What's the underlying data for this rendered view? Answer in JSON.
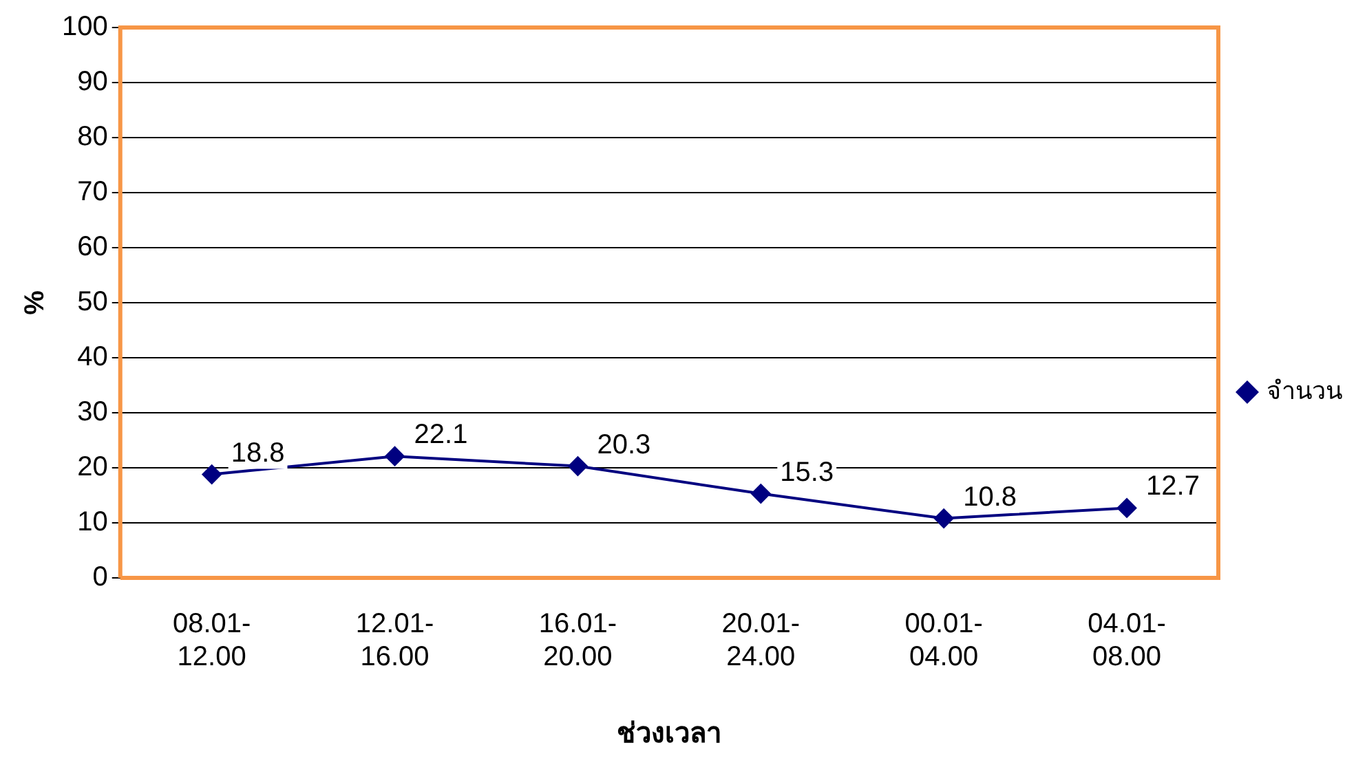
{
  "chart_data": {
    "type": "line",
    "xlabel": "ช่วงเวลา",
    "ylabel": "%",
    "categories": [
      "08.01-12.00",
      "12.01-16.00",
      "16.01-20.00",
      "20.01-24.00",
      "00.01-04.00",
      "04.01-08.00"
    ],
    "series": [
      {
        "name": "จำนวน",
        "color": "#000080",
        "values": [
          18.8,
          22.1,
          20.3,
          15.3,
          10.8,
          12.7
        ]
      }
    ],
    "ylim": [
      0,
      100
    ],
    "yticks": [
      0,
      10,
      20,
      30,
      40,
      50,
      60,
      70,
      80,
      90,
      100
    ],
    "grid": "y",
    "legend": "right",
    "marker": "diamond",
    "line_style": "solid",
    "data_labels": true
  }
}
